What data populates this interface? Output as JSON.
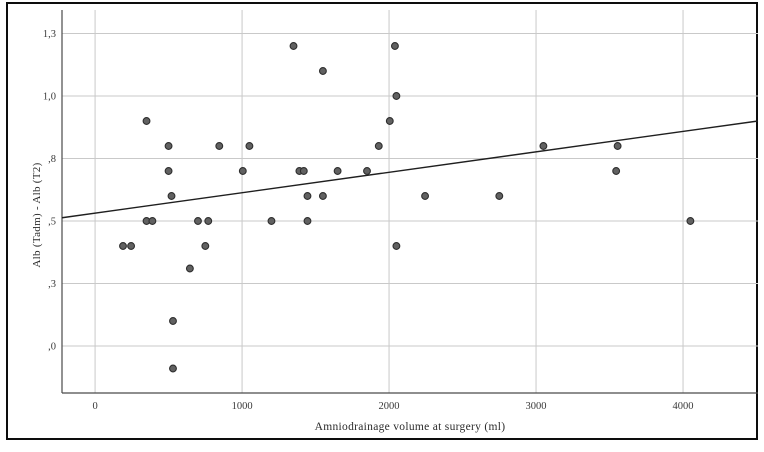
{
  "chart_data": {
    "type": "scatter",
    "title": "",
    "xlabel": "Amniodrainage volume at surgery (ml)",
    "ylabel": "Alb (Tadm) - Alb (T2)",
    "legend": null,
    "grid": true,
    "xlim": [
      -225,
      4510
    ],
    "ylim": [
      -0.188,
      1.344
    ],
    "x_ticks": [
      {
        "value": 0,
        "label": "0"
      },
      {
        "value": 1000,
        "label": "1000"
      },
      {
        "value": 2000,
        "label": "2000"
      },
      {
        "value": 3000,
        "label": "3000"
      },
      {
        "value": 4000,
        "label": "4000"
      }
    ],
    "y_ticks": [
      {
        "value": 1.25,
        "label": "1,3"
      },
      {
        "value": 1.0,
        "label": "1,0"
      },
      {
        "value": 0.75,
        "label": ",8"
      },
      {
        "value": 0.5,
        "label": ",5"
      },
      {
        "value": 0.25,
        "label": ",3"
      },
      {
        "value": 0.0,
        "label": ",0"
      }
    ],
    "points": [
      [
        190,
        0.4
      ],
      [
        245,
        0.4
      ],
      [
        350,
        0.9
      ],
      [
        350,
        0.5
      ],
      [
        390,
        0.5
      ],
      [
        500,
        0.8
      ],
      [
        500,
        0.7
      ],
      [
        520,
        0.6
      ],
      [
        530,
        0.1
      ],
      [
        530,
        -0.09
      ],
      [
        645,
        0.31
      ],
      [
        700,
        0.5
      ],
      [
        750,
        0.4
      ],
      [
        770,
        0.5
      ],
      [
        845,
        0.8
      ],
      [
        1005,
        0.7
      ],
      [
        1050,
        0.8
      ],
      [
        1200,
        0.5
      ],
      [
        1350,
        1.2
      ],
      [
        1390,
        0.7
      ],
      [
        1420,
        0.7
      ],
      [
        1445,
        0.6
      ],
      [
        1445,
        0.5
      ],
      [
        1550,
        1.1
      ],
      [
        1550,
        0.6
      ],
      [
        1650,
        0.7
      ],
      [
        1850,
        0.7
      ],
      [
        1930,
        0.8
      ],
      [
        2005,
        0.9
      ],
      [
        2040,
        1.2
      ],
      [
        2050,
        1.0
      ],
      [
        2050,
        0.4
      ],
      [
        2245,
        0.6
      ],
      [
        2750,
        0.6
      ],
      [
        3050,
        0.8
      ],
      [
        3545,
        0.7
      ],
      [
        3555,
        0.8
      ],
      [
        4050,
        0.5
      ]
    ],
    "trend_line": {
      "x1": -225,
      "y1": 0.513,
      "x2": 4510,
      "y2": 0.9
    },
    "colors": {
      "point_fill": "#616161",
      "point_stroke": "#2e2e2e",
      "gridline": "#c9c9c9",
      "axis_line": "#4a4a4a",
      "trend_line": "#1f1f1f",
      "tick_text": "#3a3a3a",
      "background": "#ffffff",
      "border": "#0d0d0d"
    }
  }
}
